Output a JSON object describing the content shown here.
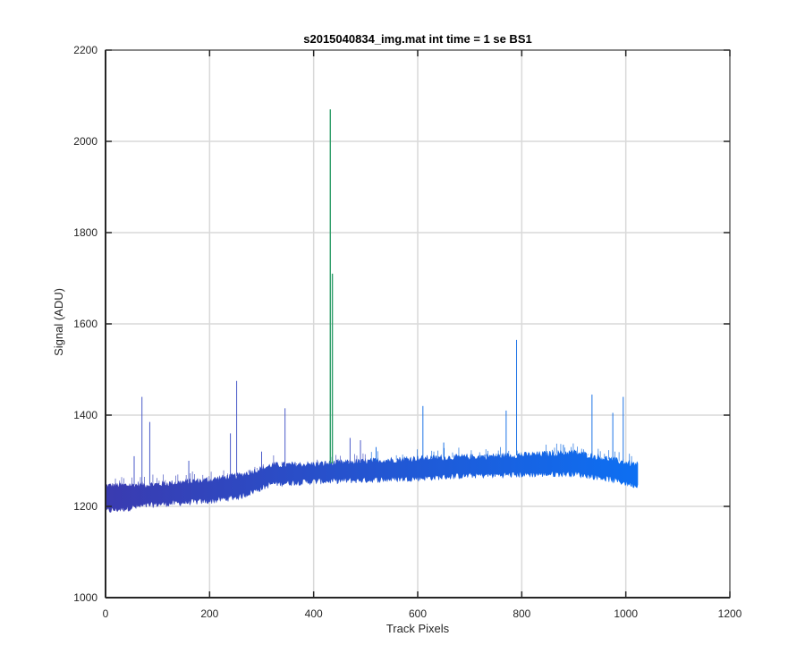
{
  "chart_data": {
    "type": "line",
    "title": "s2015040834_img.mat int time = 1 se   BS1",
    "xlabel": "Track Pixels",
    "ylabel": "Signal (ADU)",
    "xlim": [
      0,
      1200
    ],
    "ylim": [
      1000,
      2200
    ],
    "xticks": [
      0,
      200,
      400,
      600,
      800,
      1000,
      1200
    ],
    "yticks": [
      1000,
      1200,
      1400,
      1600,
      1800,
      2000,
      2200
    ],
    "grid": true,
    "legend": "none",
    "colors": {
      "start": "#3a3bb0",
      "end": "#0d6ff2",
      "spike": "#2f9e6a",
      "axis": "#262626",
      "grid": "#d9d9d9"
    },
    "series": [
      {
        "band": [
          {
            "x": 0,
            "low": 1190,
            "high": 1245
          },
          {
            "x": 100,
            "low": 1205,
            "high": 1248
          },
          {
            "x": 200,
            "low": 1212,
            "high": 1258
          },
          {
            "x": 260,
            "low": 1222,
            "high": 1268
          },
          {
            "x": 320,
            "low": 1250,
            "high": 1290
          },
          {
            "x": 400,
            "low": 1255,
            "high": 1292
          },
          {
            "x": 500,
            "low": 1258,
            "high": 1298
          },
          {
            "x": 600,
            "low": 1262,
            "high": 1305
          },
          {
            "x": 700,
            "low": 1268,
            "high": 1308
          },
          {
            "x": 800,
            "low": 1270,
            "high": 1312
          },
          {
            "x": 900,
            "low": 1272,
            "high": 1318
          },
          {
            "x": 960,
            "low": 1262,
            "high": 1305
          },
          {
            "x": 1024,
            "low": 1245,
            "high": 1290
          }
        ],
        "spikes": [
          {
            "x": 70,
            "y": 1440
          },
          {
            "x": 85,
            "y": 1385
          },
          {
            "x": 55,
            "y": 1310
          },
          {
            "x": 160,
            "y": 1300
          },
          {
            "x": 240,
            "y": 1360
          },
          {
            "x": 252,
            "y": 1475
          },
          {
            "x": 300,
            "y": 1320
          },
          {
            "x": 345,
            "y": 1415
          },
          {
            "x": 432,
            "y": 2070
          },
          {
            "x": 436,
            "y": 1710
          },
          {
            "x": 470,
            "y": 1350
          },
          {
            "x": 490,
            "y": 1345
          },
          {
            "x": 520,
            "y": 1330
          },
          {
            "x": 610,
            "y": 1420
          },
          {
            "x": 650,
            "y": 1340
          },
          {
            "x": 770,
            "y": 1410
          },
          {
            "x": 790,
            "y": 1565
          },
          {
            "x": 880,
            "y": 1335
          },
          {
            "x": 935,
            "y": 1445
          },
          {
            "x": 975,
            "y": 1405
          },
          {
            "x": 995,
            "y": 1440
          }
        ]
      }
    ]
  }
}
